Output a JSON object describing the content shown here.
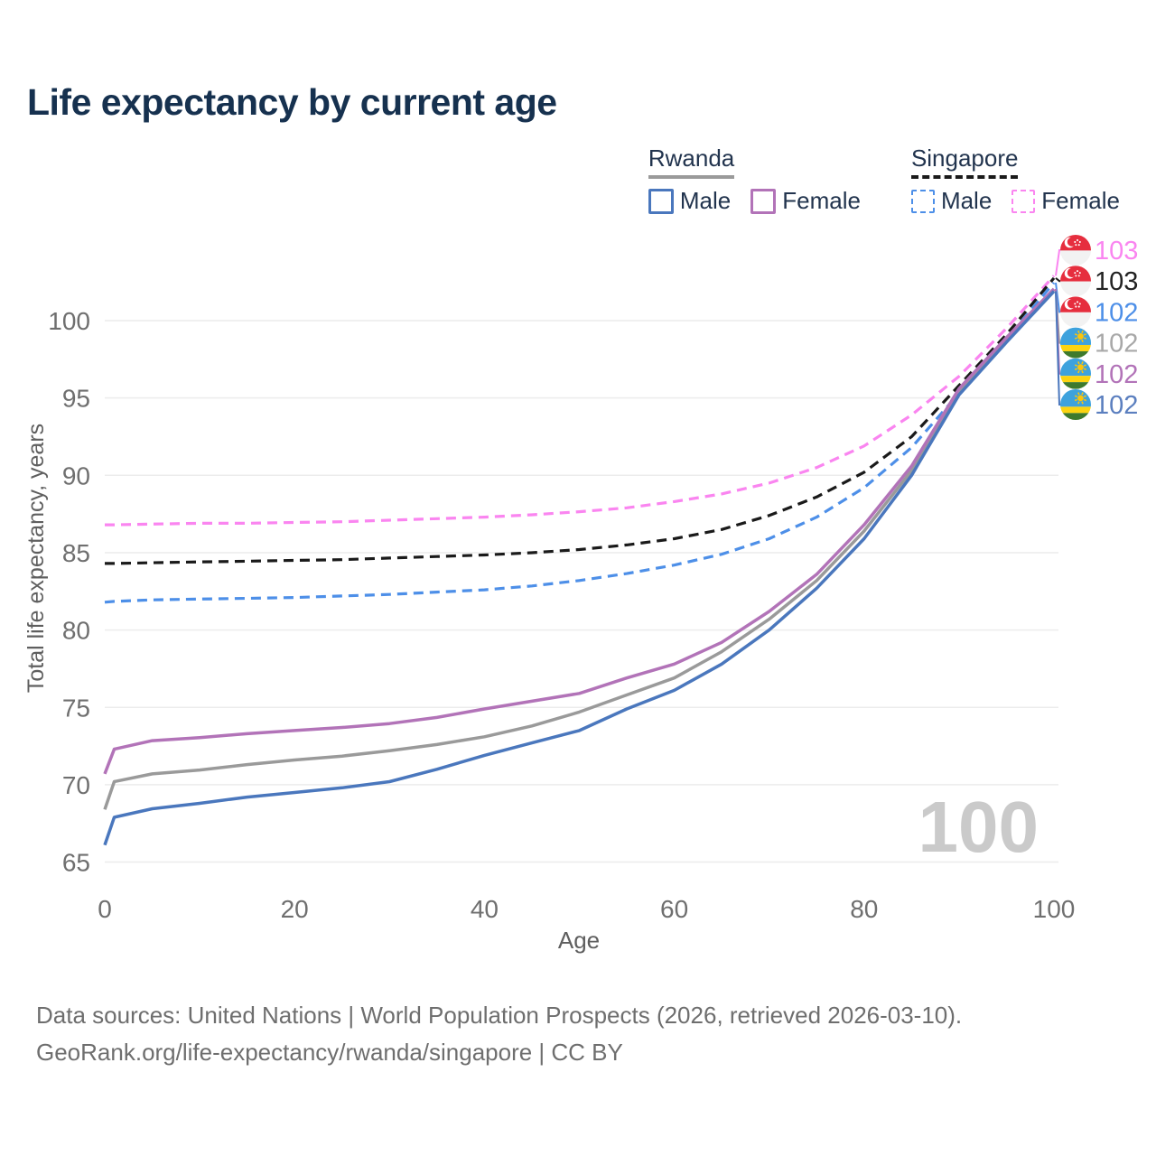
{
  "title": "Life expectancy by current age",
  "watermark": "100",
  "legend": {
    "groups": [
      {
        "name": "Rwanda",
        "underline_style": "solid",
        "underline_color": "#9a9a9a",
        "items": [
          {
            "label": "Male",
            "color": "#4a77bd",
            "style": "solid"
          },
          {
            "label": "Female",
            "color": "#b273b8",
            "style": "solid"
          }
        ]
      },
      {
        "name": "Singapore",
        "underline_style": "dashed",
        "underline_color": "#1a1a1a",
        "items": [
          {
            "label": "Male",
            "color": "#4d8fe8",
            "style": "dashed"
          },
          {
            "label": "Female",
            "color": "#fa85f0",
            "style": "dashed"
          }
        ]
      }
    ]
  },
  "chart_data": {
    "type": "line",
    "xlabel": "Age",
    "ylabel": "Total life expectancy, years",
    "xlim": [
      0,
      100
    ],
    "ylim": [
      64,
      104
    ],
    "xticks": [
      0,
      20,
      40,
      60,
      80,
      100
    ],
    "yticks": [
      65,
      70,
      75,
      80,
      85,
      90,
      95,
      100
    ],
    "grid": "horizontal",
    "x": [
      0,
      1,
      5,
      10,
      15,
      20,
      25,
      30,
      35,
      40,
      45,
      50,
      55,
      60,
      65,
      70,
      75,
      80,
      85,
      90,
      95,
      100
    ],
    "series": [
      {
        "name": "Singapore Female",
        "country": "Singapore",
        "sex": "Female",
        "style": "dashed",
        "color": "#fa85f0",
        "flag": "singapore",
        "end_label": "103",
        "end_label_color": "#fa85f0",
        "values": [
          86.8,
          86.8,
          86.85,
          86.9,
          86.9,
          86.95,
          87.0,
          87.1,
          87.2,
          87.3,
          87.45,
          87.65,
          87.9,
          88.3,
          88.8,
          89.5,
          90.5,
          91.9,
          93.9,
          96.4,
          99.5,
          102.9
        ]
      },
      {
        "name": "Singapore Both sexes",
        "country": "Singapore",
        "sex": "Both sexes",
        "style": "dashed",
        "color": "#1a1a1a",
        "flag": "singapore",
        "end_label": "103",
        "end_label_color": "#222222",
        "values": [
          84.3,
          84.3,
          84.35,
          84.4,
          84.45,
          84.5,
          84.55,
          84.65,
          84.75,
          84.85,
          85.0,
          85.2,
          85.5,
          85.9,
          86.5,
          87.4,
          88.6,
          90.2,
          92.5,
          95.8,
          99.1,
          102.75
        ]
      },
      {
        "name": "Singapore Male",
        "country": "Singapore",
        "sex": "Male",
        "style": "dashed",
        "color": "#4d8fe8",
        "flag": "singapore",
        "end_label": "102",
        "end_label_color": "#4d8fe8",
        "values": [
          81.8,
          81.85,
          81.95,
          82.0,
          82.05,
          82.1,
          82.2,
          82.3,
          82.45,
          82.6,
          82.85,
          83.2,
          83.65,
          84.2,
          84.9,
          85.9,
          87.3,
          89.2,
          91.8,
          95.3,
          98.8,
          102.45
        ]
      },
      {
        "name": "Rwanda Both sexes",
        "country": "Rwanda",
        "sex": "Both sexes",
        "style": "solid",
        "color": "#9a9a9a",
        "flag": "rwanda",
        "end_label": "102",
        "end_label_color": "#a8a8a8",
        "values": [
          68.4,
          70.2,
          70.7,
          70.95,
          71.3,
          71.6,
          71.85,
          72.2,
          72.6,
          73.1,
          73.8,
          74.7,
          75.8,
          76.9,
          78.6,
          80.7,
          83.2,
          86.4,
          90.3,
          95.4,
          98.8,
          102.0
        ]
      },
      {
        "name": "Rwanda Female",
        "country": "Rwanda",
        "sex": "Female",
        "style": "solid",
        "color": "#b273b8",
        "flag": "rwanda",
        "end_label": "102",
        "end_label_color": "#b273b8",
        "values": [
          70.7,
          72.3,
          72.85,
          73.05,
          73.3,
          73.5,
          73.7,
          73.95,
          74.35,
          74.9,
          75.4,
          75.9,
          76.9,
          77.8,
          79.2,
          81.2,
          83.6,
          86.8,
          90.6,
          95.6,
          98.9,
          102.05
        ]
      },
      {
        "name": "Rwanda Male",
        "country": "Rwanda",
        "sex": "Male",
        "style": "solid",
        "color": "#4a77bd",
        "flag": "rwanda",
        "end_label": "102",
        "end_label_color": "#5b7fbf",
        "values": [
          66.1,
          67.9,
          68.45,
          68.8,
          69.2,
          69.5,
          69.8,
          70.2,
          71.0,
          71.9,
          72.7,
          73.5,
          74.9,
          76.1,
          77.8,
          80.0,
          82.7,
          85.9,
          90.0,
          95.2,
          98.6,
          101.9
        ]
      }
    ],
    "colors": {
      "grid": "#ececec",
      "tick_label": "#6f6f6f",
      "axis_title": "#5f5f5f",
      "watermark": "#cacaca"
    },
    "flag_colors": {
      "singapore_red": "#e62e3e",
      "singapore_white": "#f2f2f2",
      "rwanda_blue": "#3ea2dd",
      "rwanda_yellow": "#fcd411",
      "rwanda_green": "#3e7a2d",
      "rwanda_sun": "#fcc50a"
    }
  },
  "footer": {
    "line1": "Data sources: United Nations | World Population Prospects (2026, retrieved 2026-03-10).",
    "line2": "GeoRank.org/life-expectancy/rwanda/singapore | CC BY"
  }
}
